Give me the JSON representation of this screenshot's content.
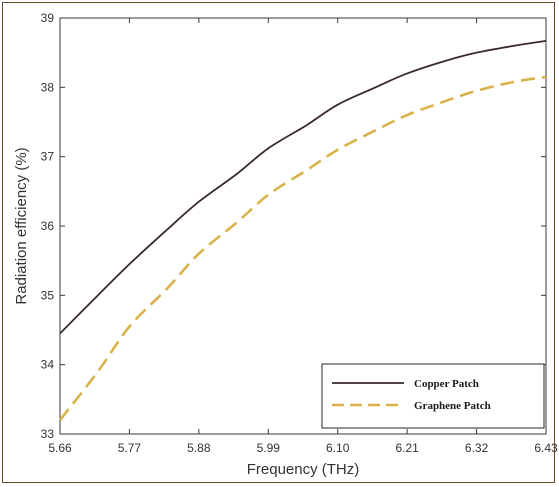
{
  "chart_data": {
    "type": "line",
    "title": "",
    "xlabel": "Frequency (THz)",
    "ylabel": "Radiation efficiency (%)",
    "xlim": [
      5.66,
      6.43
    ],
    "ylim": [
      33,
      39
    ],
    "x_ticks": [
      "5.66",
      "5.77",
      "5.88",
      "5.99",
      "6.10",
      "6.21",
      "6.32",
      "6.43"
    ],
    "y_ticks": [
      "33",
      "34",
      "35",
      "36",
      "37",
      "38",
      "39"
    ],
    "grid": false,
    "legend_position": "bottom-right",
    "x": [
      5.66,
      5.72,
      5.77,
      5.83,
      5.88,
      5.94,
      5.99,
      6.05,
      6.1,
      6.16,
      6.21,
      6.27,
      6.32,
      6.38,
      6.43
    ],
    "series": [
      {
        "name": "Copper Patch",
        "color": "#3a2a30",
        "dash": "solid",
        "values": [
          34.45,
          35.0,
          35.45,
          35.95,
          36.35,
          36.75,
          37.12,
          37.45,
          37.75,
          38.0,
          38.2,
          38.38,
          38.5,
          38.6,
          38.67
        ]
      },
      {
        "name": "Graphene Patch",
        "color": "#d9b24a",
        "dash": "dashed",
        "values": [
          33.2,
          33.9,
          34.55,
          35.1,
          35.6,
          36.05,
          36.45,
          36.8,
          37.1,
          37.38,
          37.6,
          37.8,
          37.95,
          38.08,
          38.15
        ]
      }
    ]
  }
}
